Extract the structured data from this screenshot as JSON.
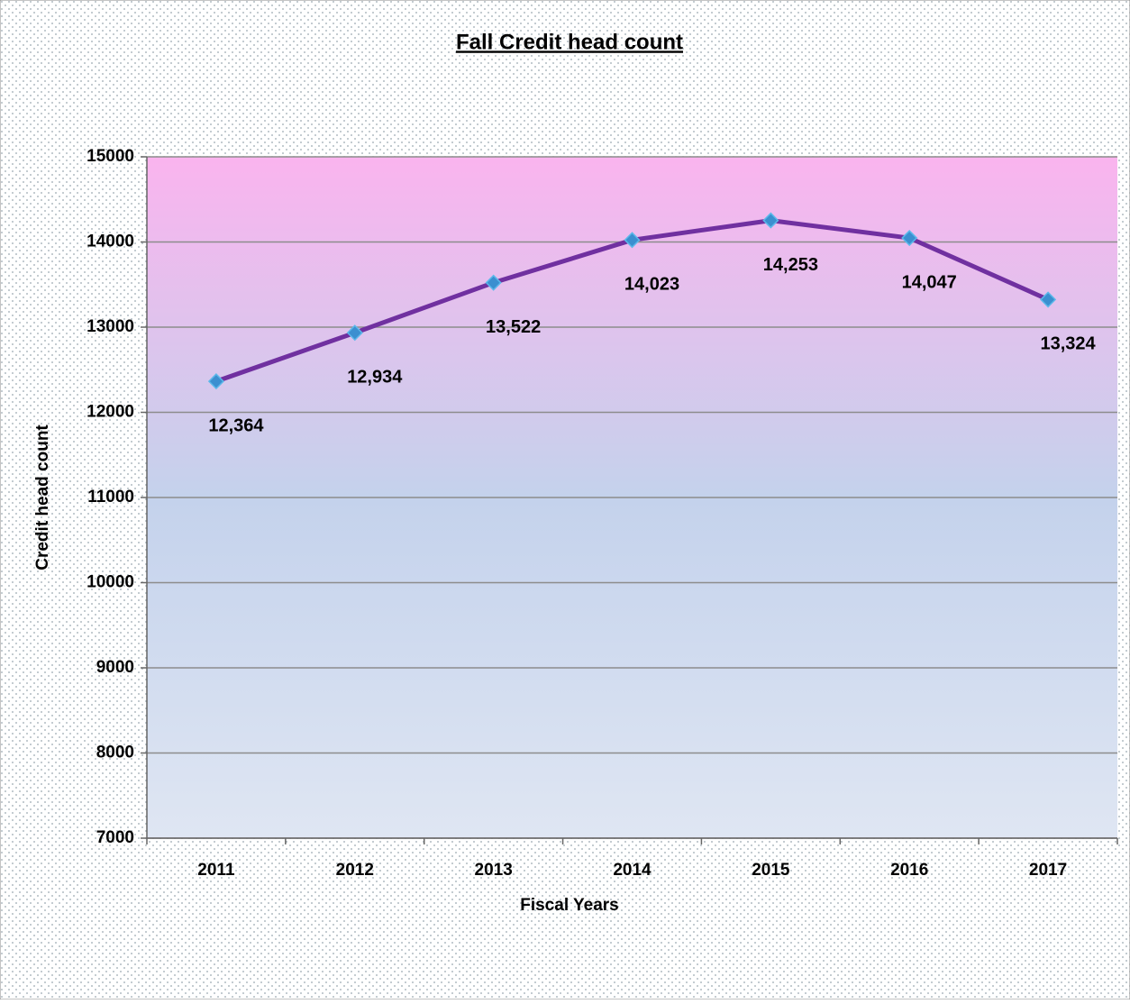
{
  "chart_data": {
    "type": "line",
    "title": "Fall Credit  head count",
    "x_label": "Fiscal Years",
    "y_label": "Credit head count",
    "categories": [
      "2011",
      "2012",
      "2013",
      "2014",
      "2015",
      "2016",
      "2017"
    ],
    "series": [
      {
        "name": "Credit head count",
        "color": "#7030a0",
        "marker_color": "#3b8fd0",
        "values": [
          12364,
          12934,
          13522,
          14023,
          14253,
          14047,
          13324
        ],
        "value_labels": [
          "12,364",
          "12,934",
          "13,522",
          "14,023",
          "14,253",
          "14,047",
          "13,324"
        ]
      }
    ],
    "ylim": [
      7000,
      15000
    ],
    "yticks": [
      7000,
      8000,
      9000,
      10000,
      11000,
      12000,
      13000,
      14000,
      15000
    ],
    "grid": true
  }
}
